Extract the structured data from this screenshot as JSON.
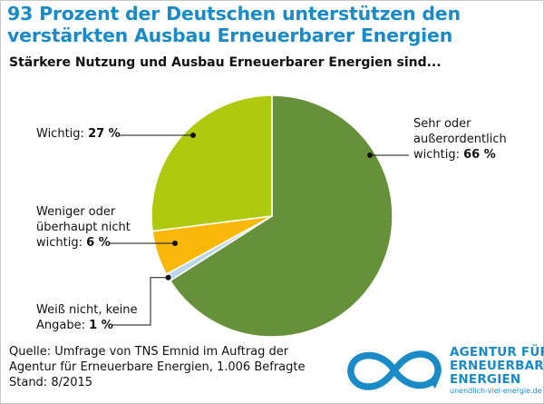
{
  "title": "93 Prozent der Deutschen unterstützen den verstärkten Ausbau Erneuerbarer Energien",
  "subtitle": "Stärkere Nutzung und Ausbau Erneuerbarer Energien sind...",
  "labels": {
    "wichtig": {
      "text": "Wichtig:",
      "value": "27 %"
    },
    "sehr": {
      "line1": "Sehr oder",
      "line2": "außerordentlich",
      "line3": "wichtig:",
      "value": "66 %"
    },
    "weniger": {
      "line1": "Weniger oder",
      "line2": "überhaupt nicht",
      "line3": "wichtig:",
      "value": "6 %"
    },
    "weiss": {
      "line1": "Weiß nicht, keine",
      "line2": "Angabe:",
      "value": "1 %"
    }
  },
  "source": {
    "line1": "Quelle: Umfrage von TNS Emnid im Auftrag der",
    "line2": "Agentur für Erneuerbare Energien, 1.006 Befragte",
    "line3": "Stand: 8/2015"
  },
  "logo": {
    "line1": "AGENTUR FÜR",
    "line2": "ERNEUERBARE",
    "line3": "ENERGIEN",
    "url": "unendlich-viel-energie.de",
    "icon": "infinity-logo-icon"
  },
  "colors": {
    "title": "#1a8bc6",
    "sehr": "#66913a",
    "wichtig": "#afc90f",
    "weniger": "#f8b709",
    "weiss": "#b9d6ea"
  },
  "chart_data": {
    "type": "pie",
    "slices": [
      {
        "label": "Sehr oder außerordentlich wichtig",
        "value": 66
      },
      {
        "label": "Weiß nicht, keine Angabe",
        "value": 1
      },
      {
        "label": "Weniger oder überhaupt nicht wichtig",
        "value": 6
      },
      {
        "label": "Wichtig",
        "value": 27
      }
    ],
    "start": "top",
    "direction": "clockwise",
    "title": "93 Prozent der Deutschen unterstützen den verstärkten Ausbau Erneuerbarer Energien",
    "subtitle": "Stärkere Nutzung und Ausbau Erneuerbarer Energien sind..."
  }
}
